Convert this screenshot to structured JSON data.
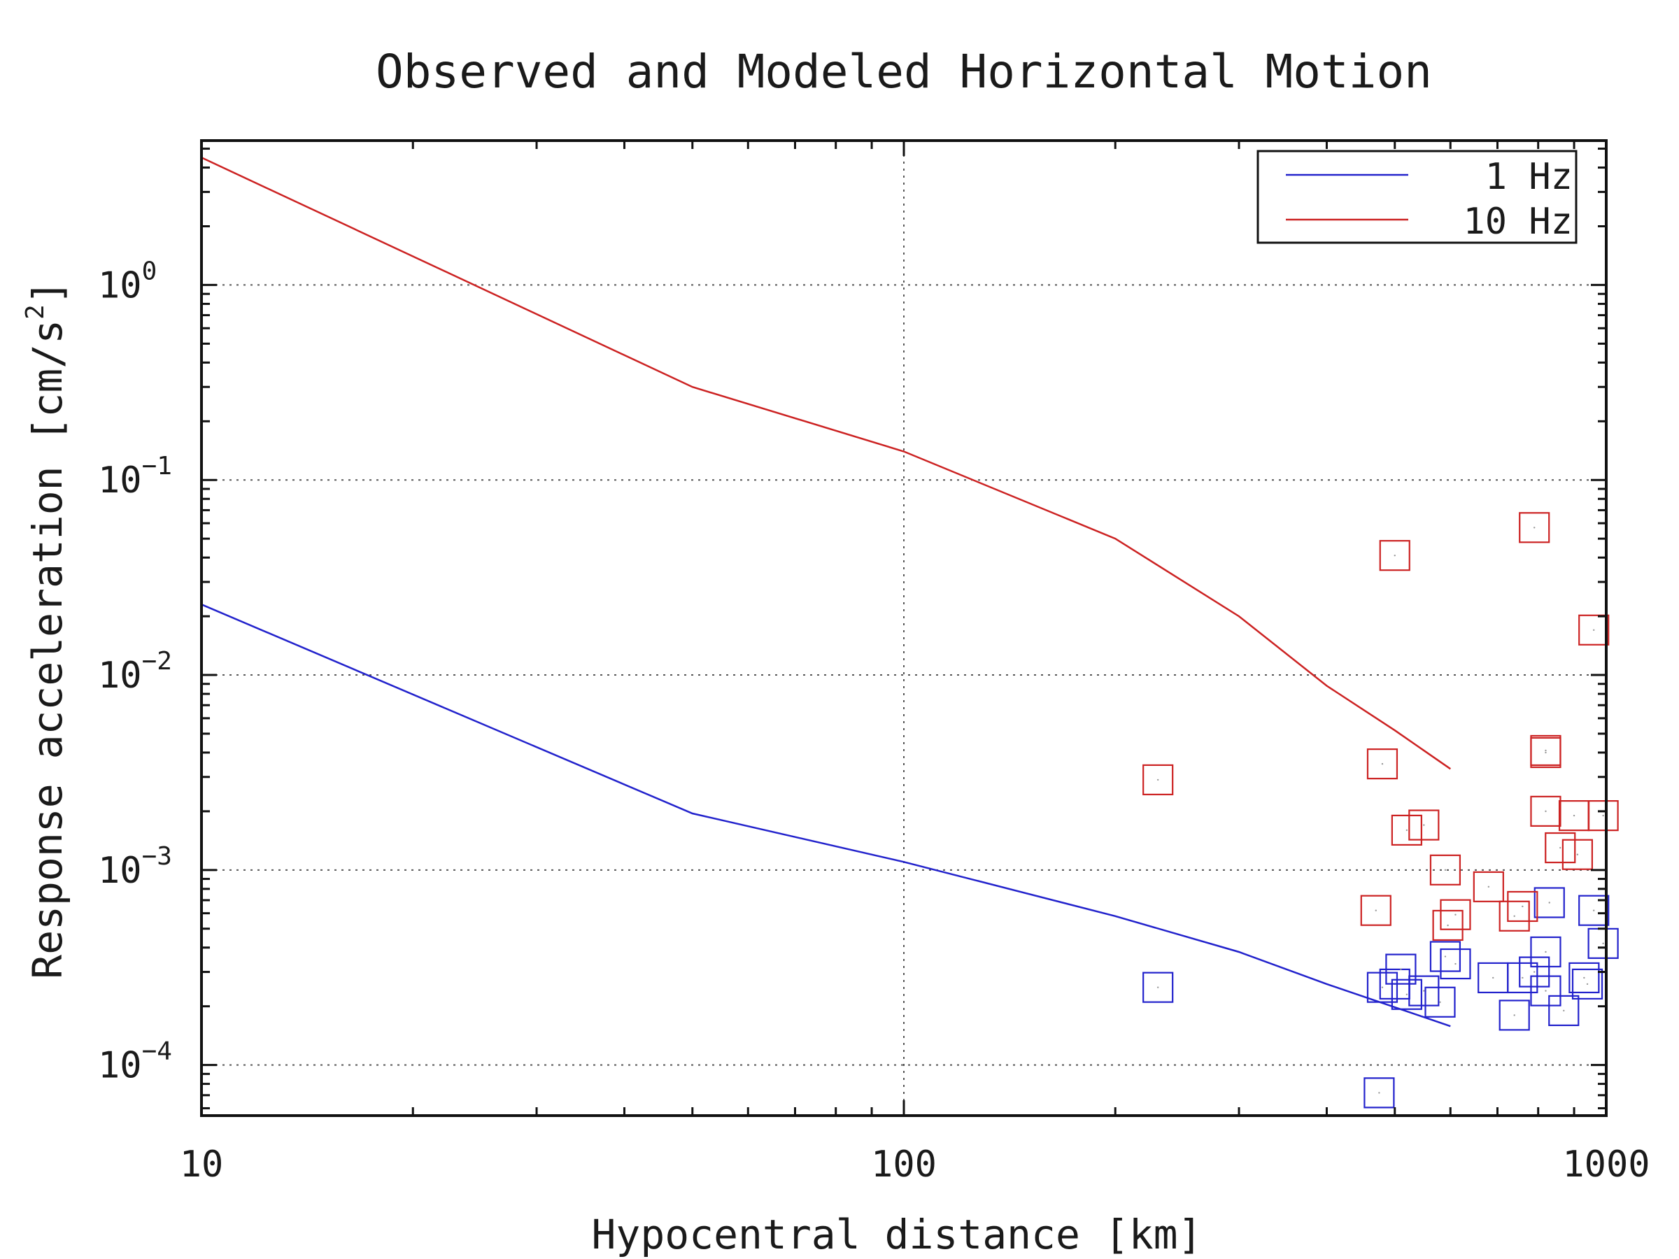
{
  "chart_data": {
    "type": "scatter",
    "title": "Observed and Modeled Horizontal Motion",
    "xlabel": "Hypocentral distance [km]",
    "ylabel_main": "Response acceleration [cm/s",
    "ylabel_sup": "2",
    "ylabel_close": "]",
    "x_scale": "log",
    "y_scale": "log",
    "xlim": [
      10,
      1000
    ],
    "ylim": [
      5.5e-05,
      5.5
    ],
    "grid": true,
    "legend_position": "top-right",
    "x_ticks": [
      {
        "value": 10,
        "label": "10"
      },
      {
        "value": 100,
        "label": "100"
      },
      {
        "value": 1000,
        "label": "1000"
      }
    ],
    "y_ticks": [
      {
        "value": 1,
        "base": "10",
        "exp": "0"
      },
      {
        "value": 0.1,
        "base": "10",
        "exp": "−1"
      },
      {
        "value": 0.01,
        "base": "10",
        "exp": "−2"
      },
      {
        "value": 0.001,
        "base": "10",
        "exp": "−3"
      },
      {
        "value": 0.0001,
        "base": "10",
        "exp": "−4"
      }
    ],
    "series": [
      {
        "name": "1 Hz",
        "color": "#2222cc",
        "line": [
          [
            10,
            0.023
          ],
          [
            50,
            0.00195
          ],
          [
            100,
            0.0011
          ],
          [
            200,
            0.00058
          ],
          [
            300,
            0.00038
          ],
          [
            400,
            0.00026
          ],
          [
            600,
            0.000158
          ]
        ],
        "points": [
          [
            230,
            0.00025
          ],
          [
            475,
            7.2e-05
          ],
          [
            480,
            0.00025
          ],
          [
            500,
            0.00026
          ],
          [
            510,
            0.00031
          ],
          [
            520,
            0.00023
          ],
          [
            550,
            0.00024
          ],
          [
            580,
            0.00021
          ],
          [
            590,
            0.00036
          ],
          [
            610,
            0.00033
          ],
          [
            690,
            0.00028
          ],
          [
            740,
            0.00018
          ],
          [
            760,
            0.00028
          ],
          [
            790,
            0.0003
          ],
          [
            820,
            0.00038
          ],
          [
            820,
            0.00024
          ],
          [
            830,
            0.00068
          ],
          [
            870,
            0.00019
          ],
          [
            930,
            0.00028
          ],
          [
            940,
            0.00026
          ],
          [
            960,
            0.00062
          ],
          [
            990,
            0.00042
          ]
        ]
      },
      {
        "name": "10 Hz",
        "color": "#cc2222",
        "line": [
          [
            10,
            4.5
          ],
          [
            50,
            0.3
          ],
          [
            100,
            0.14
          ],
          [
            200,
            0.05
          ],
          [
            300,
            0.02
          ],
          [
            400,
            0.0088
          ],
          [
            500,
            0.0052
          ],
          [
            600,
            0.0033
          ]
        ],
        "points": [
          [
            230,
            0.0029
          ],
          [
            470,
            0.00062
          ],
          [
            480,
            0.0035
          ],
          [
            500,
            0.041
          ],
          [
            520,
            0.0016
          ],
          [
            550,
            0.0017
          ],
          [
            590,
            0.001
          ],
          [
            595,
            0.00052
          ],
          [
            610,
            0.00059
          ],
          [
            680,
            0.00082
          ],
          [
            740,
            0.00058
          ],
          [
            760,
            0.00065
          ],
          [
            790,
            0.057
          ],
          [
            820,
            0.0041
          ],
          [
            820,
            0.004
          ],
          [
            820,
            0.002
          ],
          [
            860,
            0.0013
          ],
          [
            900,
            0.0019
          ],
          [
            910,
            0.0012
          ],
          [
            960,
            0.017
          ],
          [
            990,
            0.0019
          ]
        ]
      }
    ]
  }
}
